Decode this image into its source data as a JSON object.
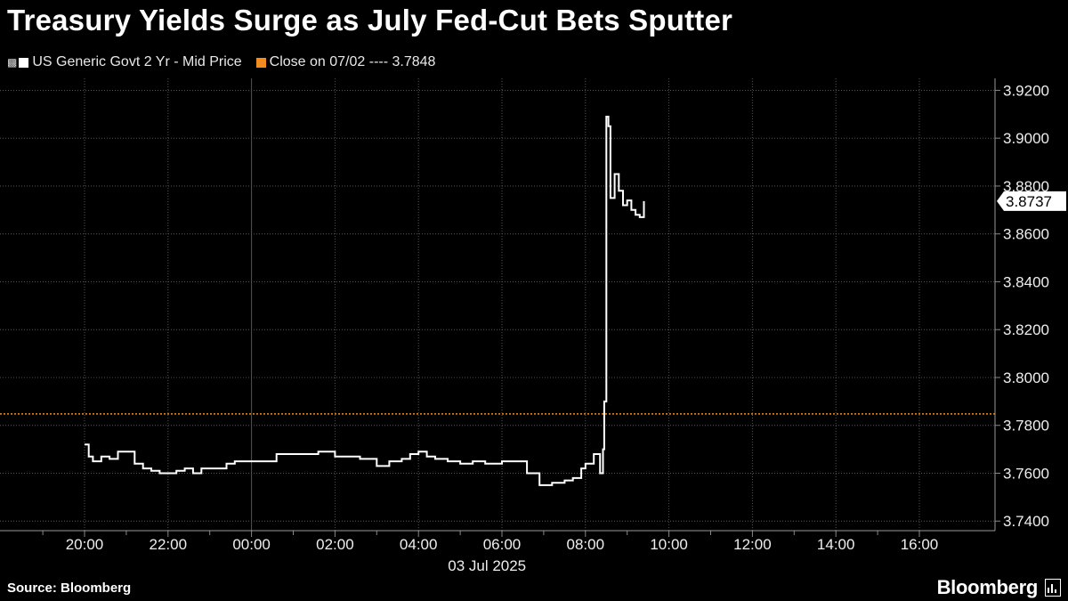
{
  "title": "Treasury Yields Surge as July Fed-Cut Bets Sputter",
  "legend": {
    "series_label": "US Generic Govt 2 Yr - Mid Price",
    "close_label": "Close on 07/02 ---- 3.7848",
    "series_color": "#ffffff",
    "close_color": "#f28c1e"
  },
  "footer": {
    "source": "Source: Bloomberg",
    "brand": "Bloomberg"
  },
  "chart_data": {
    "type": "line",
    "x_tick_labels": [
      "20:00",
      "22:00",
      "00:00",
      "02:00",
      "04:00",
      "06:00",
      "08:00",
      "10:00",
      "12:00",
      "14:00",
      "16:00"
    ],
    "x_date_label": "03 Jul 2025",
    "y_tick_labels": [
      "3.9200",
      "3.9000",
      "3.8800",
      "3.8600",
      "3.8400",
      "3.8200",
      "3.8000",
      "3.7800",
      "3.7600",
      "3.7400"
    ],
    "ylim": [
      3.736,
      3.925
    ],
    "y_axis_side": "right",
    "grid": true,
    "last_value_label": "3.8737",
    "reference_line": {
      "name": "Close on 07/02",
      "value": 3.7848
    },
    "series": [
      {
        "name": "US Generic Govt 2 Yr - Mid Price",
        "time_hours": [
          20.0,
          20.1,
          20.2,
          20.4,
          20.6,
          20.8,
          21.0,
          21.2,
          21.4,
          21.6,
          21.8,
          22.0,
          22.2,
          22.4,
          22.6,
          22.8,
          23.0,
          23.2,
          23.4,
          23.6,
          23.8,
          24.0,
          24.3,
          24.6,
          25.0,
          25.3,
          25.6,
          26.0,
          26.3,
          26.6,
          27.0,
          27.3,
          27.6,
          27.8,
          28.0,
          28.2,
          28.4,
          28.7,
          29.0,
          29.3,
          29.6,
          30.0,
          30.3,
          30.6,
          30.9,
          31.2,
          31.5,
          31.7,
          31.9,
          32.0,
          32.2,
          32.35,
          32.42,
          32.45,
          32.5,
          32.55,
          32.6,
          32.7,
          32.8,
          32.9,
          33.0,
          33.1,
          33.2,
          33.3,
          33.4
        ],
        "values": [
          3.772,
          3.767,
          3.765,
          3.767,
          3.766,
          3.769,
          3.769,
          3.764,
          3.762,
          3.761,
          3.76,
          3.76,
          3.761,
          3.762,
          3.76,
          3.762,
          3.762,
          3.762,
          3.764,
          3.765,
          3.765,
          3.765,
          3.765,
          3.768,
          3.768,
          3.768,
          3.769,
          3.767,
          3.767,
          3.766,
          3.763,
          3.765,
          3.766,
          3.768,
          3.769,
          3.767,
          3.766,
          3.765,
          3.764,
          3.765,
          3.764,
          3.765,
          3.765,
          3.76,
          3.755,
          3.756,
          3.757,
          3.758,
          3.762,
          3.764,
          3.768,
          3.76,
          3.77,
          3.79,
          3.909,
          3.905,
          3.875,
          3.885,
          3.878,
          3.872,
          3.874,
          3.87,
          3.868,
          3.867,
          3.8737
        ]
      }
    ]
  }
}
